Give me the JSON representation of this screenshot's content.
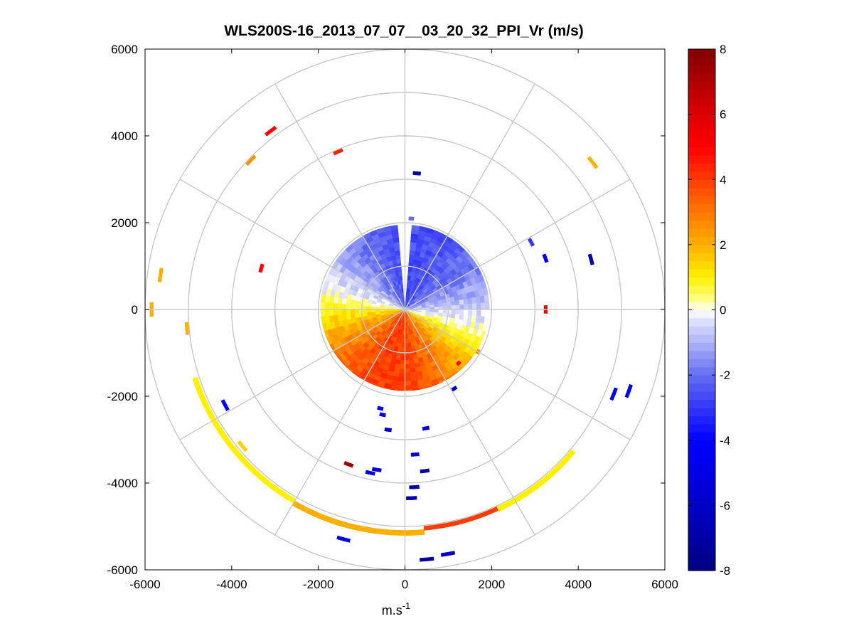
{
  "chart_data": {
    "type": "heatmap",
    "subtype": "polar-ppi",
    "title": "WLS200S-16_2013_07_07__03_20_32_PPI_Vr (m/s)",
    "xlabel": {
      "base": "m.s",
      "sup": "-1"
    },
    "ylabel": "",
    "xlim": [
      -6000,
      6000
    ],
    "ylim": [
      -6000,
      6000
    ],
    "xticks": [
      "-6000",
      "-4000",
      "-2000",
      "0",
      "2000",
      "4000",
      "6000"
    ],
    "yticks": [
      "6000",
      "4000",
      "2000",
      "0",
      "-2000",
      "-4000",
      "-6000"
    ],
    "grid": true,
    "polar_grid": {
      "ring_radii": [
        1000,
        2000,
        3000,
        4000,
        5000,
        6000
      ],
      "spoke_angles_deg": [
        0,
        30,
        60,
        90,
        120,
        150,
        180,
        210,
        240,
        270,
        300,
        330
      ]
    },
    "colorbar": {
      "min": -8,
      "max": 8,
      "ticks": [
        "8",
        "6",
        "4",
        "2",
        "0",
        "-2",
        "-4",
        "-6",
        "-8"
      ],
      "placement": "right"
    },
    "dense_region": {
      "max_range": 1950,
      "description_hidden": true
    },
    "scattered_returns": [
      {
        "angle": 95,
        "r": 5780,
        "v": -7
      },
      {
        "angle": 100,
        "r": 5720,
        "v": -6
      },
      {
        "angle": 75,
        "r": 5480,
        "v": -5
      },
      {
        "angle": 92,
        "r": 4350,
        "v": -7
      },
      {
        "angle": 93,
        "r": 4100,
        "v": -7
      },
      {
        "angle": 78,
        "r": 3850,
        "v": -5
      },
      {
        "angle": 80,
        "r": 3750,
        "v": -5
      },
      {
        "angle": 70,
        "r": 3800,
        "v": 7.5
      },
      {
        "angle": 97,
        "r": 3750,
        "v": -7
      },
      {
        "angle": 94,
        "r": 3350,
        "v": -6
      },
      {
        "angle": 82,
        "r": 2800,
        "v": -6
      },
      {
        "angle": 100,
        "r": 2780,
        "v": -6
      },
      {
        "angle": 78,
        "r": 2480,
        "v": -5
      },
      {
        "angle": 76,
        "r": 2350,
        "v": -4
      },
      {
        "angle": 122,
        "r": 2150,
        "v": -6
      },
      {
        "angle": 28,
        "r": 4700,
        "v": -5
      },
      {
        "angle": 158,
        "r": 5200,
        "v": -5
      },
      {
        "angle": 160,
        "r": 5500,
        "v": -5
      },
      {
        "angle": 195,
        "r": 4450,
        "v": -7
      },
      {
        "angle": 200,
        "r": 3450,
        "v": -5
      },
      {
        "angle": 208,
        "r": 3300,
        "v": -3
      },
      {
        "angle": 218,
        "r": 5500,
        "v": 2
      },
      {
        "angle": 265,
        "r": 3150,
        "v": -7
      },
      {
        "angle": 266,
        "r": 2100,
        "v": -2
      },
      {
        "angle": 293,
        "r": 3950,
        "v": 4.5
      },
      {
        "angle": 307,
        "r": 5150,
        "v": 5
      },
      {
        "angle": 316,
        "r": 4950,
        "v": 2.5
      },
      {
        "angle": 352,
        "r": 5700,
        "v": 2
      },
      {
        "angle": 0,
        "r": 5850,
        "v": 2
      },
      {
        "angle": 5,
        "r": 5050,
        "v": 2
      },
      {
        "angle": 40,
        "r": 4900,
        "v": 1.5
      },
      {
        "angle": 344,
        "r": 3450,
        "v": 5
      },
      {
        "angle": 180,
        "r": 3250,
        "v": 5.5
      },
      {
        "angle": 135,
        "r": 1750,
        "v": 5
      },
      {
        "angle": 150,
        "r": 1950,
        "v": 2.5
      }
    ],
    "outer_arc_returns": [
      {
        "from": 18,
        "to": 60,
        "r": 5100,
        "v": 1
      },
      {
        "from": 60,
        "to": 95,
        "r": 5150,
        "v": 2
      },
      {
        "from": 95,
        "to": 115,
        "r": 5050,
        "v": 4
      },
      {
        "from": 115,
        "to": 140,
        "r": 5080,
        "v": 1
      }
    ]
  }
}
